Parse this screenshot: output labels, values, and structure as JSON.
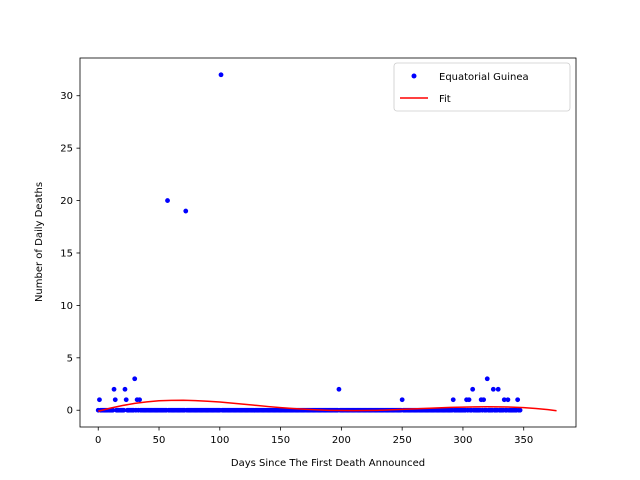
{
  "chart_data": {
    "type": "scatter",
    "title": "",
    "xlabel": "Days Since The First Death Announced",
    "ylabel": "Number of Daily Deaths",
    "xlim": [
      -15,
      393
    ],
    "ylim": [
      -1.6,
      33.6
    ],
    "xticks": [
      0,
      50,
      100,
      150,
      200,
      250,
      300,
      350
    ],
    "yticks": [
      0,
      5,
      10,
      15,
      20,
      25,
      30
    ],
    "grid": false,
    "legend_position": "upper right",
    "series": [
      {
        "name": "Equatorial Guinea",
        "kind": "points",
        "color": "#0000ff",
        "points": [
          [
            1,
            1
          ],
          [
            13,
            2
          ],
          [
            14,
            1
          ],
          [
            22,
            2
          ],
          [
            23,
            1
          ],
          [
            30,
            3
          ],
          [
            32,
            1
          ],
          [
            34,
            1
          ],
          [
            57,
            20
          ],
          [
            72,
            19
          ],
          [
            101,
            32
          ],
          [
            198,
            2
          ],
          [
            250,
            1
          ],
          [
            292,
            1
          ],
          [
            303,
            1
          ],
          [
            305,
            1
          ],
          [
            308,
            2
          ],
          [
            315,
            1
          ],
          [
            317,
            1
          ],
          [
            320,
            3
          ],
          [
            325,
            2
          ],
          [
            329,
            2
          ],
          [
            334,
            1
          ],
          [
            337,
            1
          ],
          [
            345,
            1
          ]
        ],
        "zero_days_range": [
          0,
          347
        ]
      },
      {
        "name": "Fit",
        "kind": "line",
        "color": "#ff0000",
        "points": [
          [
            0,
            -0.1
          ],
          [
            10,
            0.2
          ],
          [
            20,
            0.45
          ],
          [
            30,
            0.65
          ],
          [
            40,
            0.8
          ],
          [
            50,
            0.9
          ],
          [
            60,
            0.94
          ],
          [
            70,
            0.95
          ],
          [
            80,
            0.92
          ],
          [
            90,
            0.86
          ],
          [
            100,
            0.78
          ],
          [
            110,
            0.68
          ],
          [
            120,
            0.57
          ],
          [
            130,
            0.46
          ],
          [
            140,
            0.35
          ],
          [
            150,
            0.25
          ],
          [
            160,
            0.16
          ],
          [
            170,
            0.09
          ],
          [
            180,
            0.03
          ],
          [
            190,
            -0.01
          ],
          [
            200,
            -0.03
          ],
          [
            210,
            -0.04
          ],
          [
            220,
            -0.03
          ],
          [
            230,
            -0.01
          ],
          [
            240,
            0.03
          ],
          [
            250,
            0.08
          ],
          [
            260,
            0.13
          ],
          [
            270,
            0.18
          ],
          [
            280,
            0.23
          ],
          [
            290,
            0.27
          ],
          [
            300,
            0.3
          ],
          [
            310,
            0.32
          ],
          [
            320,
            0.33
          ],
          [
            330,
            0.32
          ],
          [
            340,
            0.3
          ],
          [
            350,
            0.25
          ],
          [
            360,
            0.17
          ],
          [
            370,
            0.06
          ],
          [
            377,
            -0.05
          ]
        ]
      }
    ]
  }
}
